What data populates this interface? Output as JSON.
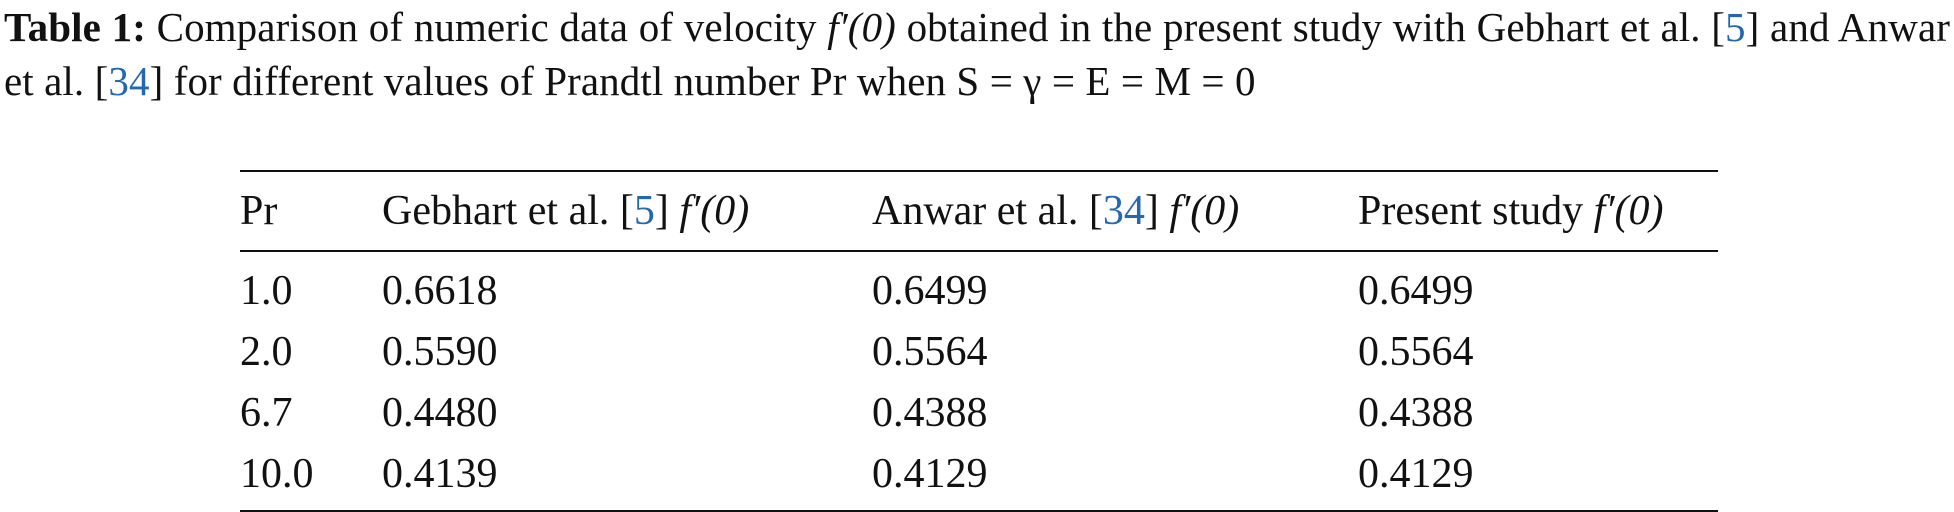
{
  "caption": {
    "label": "Table 1:",
    "text_before_ref1": " Comparison of numeric data of velocity ",
    "f_symbol": "f′(0)",
    "text_after_f": " obtained in the present study with Gebhart et al. [",
    "ref1": "5",
    "text_between_refs": "] and Anwar et al. [",
    "ref2": "34",
    "text_end": "] for different values of Prandtl number Pr when S = γ = E = M = 0"
  },
  "table": {
    "headers": [
      {
        "pre": "Pr",
        "ref": "",
        "post": "",
        "symbol": ""
      },
      {
        "pre": "Gebhart et al. [",
        "ref": "5",
        "post": "] ",
        "symbol": "f′(0)"
      },
      {
        "pre": "Anwar et al. [",
        "ref": "34",
        "post": "] ",
        "symbol": "f′(0)"
      },
      {
        "pre": "Present study ",
        "ref": "",
        "post": "",
        "symbol": "f′(0)"
      }
    ],
    "rows": [
      [
        "1.0",
        "0.6618",
        "0.6499",
        "0.6499"
      ],
      [
        "2.0",
        "0.5590",
        "0.5564",
        "0.5564"
      ],
      [
        "6.7",
        "0.4480",
        "0.4388",
        "0.4388"
      ],
      [
        "10.0",
        "0.4139",
        "0.4129",
        "0.4129"
      ]
    ]
  }
}
